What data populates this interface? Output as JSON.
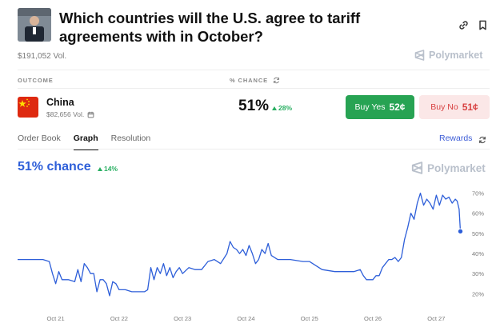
{
  "market": {
    "title": "Which countries will the U.S. agree to tariff agreements with in October?",
    "volume": "$191,052 Vol.",
    "brand": "Polymarket"
  },
  "columns": {
    "outcome": "OUTCOME",
    "chance": "% CHANCE"
  },
  "outcome": {
    "name": "China",
    "volume": "$82,656 Vol.",
    "chance": "51%",
    "change": "28%",
    "buy_yes_label": "Buy Yes",
    "buy_yes_price": "52¢",
    "buy_no_label": "Buy No",
    "buy_no_price": "51¢"
  },
  "tabs": [
    {
      "label": "Order Book",
      "active": false
    },
    {
      "label": "Graph",
      "active": true
    },
    {
      "label": "Resolution",
      "active": false
    }
  ],
  "rewards_label": "Rewards",
  "chart_header": {
    "chance": "51% chance",
    "change": "14%"
  },
  "icons": {
    "link": "link-icon",
    "bookmark": "bookmark-icon",
    "refresh": "refresh-icon",
    "calendar": "calendar-icon",
    "flag": "china-flag-icon",
    "brand": "polymarket-logo-icon"
  },
  "colors": {
    "line": "#2e5fd9",
    "yes": "#27a353",
    "no_bg": "#fbe7e7",
    "no_text": "#d84242",
    "up": "#27ae60"
  },
  "chart_data": {
    "type": "line",
    "x_ticks": [
      "Oct 21",
      "Oct 22",
      "Oct 23",
      "Oct 24",
      "Oct 25",
      "Oct 26",
      "Oct 27"
    ],
    "y_ticks": [
      "20%",
      "30%",
      "40%",
      "50%",
      "60%",
      "70%"
    ],
    "ylim": [
      15,
      73
    ],
    "xlim": [
      20.4,
      27.5
    ],
    "grid": false,
    "series": [
      {
        "x": [
          20.4,
          20.6,
          20.8,
          20.9,
          20.95,
          21.0,
          21.05,
          21.1,
          21.2,
          21.3,
          21.35,
          21.4,
          21.45,
          21.5,
          21.55,
          21.6,
          21.65,
          21.7,
          21.75,
          21.8,
          21.85,
          21.9,
          21.95,
          22.0,
          22.1,
          22.2,
          22.3,
          22.4,
          22.45,
          22.5,
          22.55,
          22.6,
          22.65,
          22.7,
          22.75,
          22.8,
          22.85,
          22.9,
          22.95,
          23.0,
          23.1,
          23.2,
          23.3,
          23.4,
          23.5,
          23.6,
          23.7,
          23.75,
          23.8,
          23.85,
          23.9,
          23.95,
          24.0,
          24.05,
          24.1,
          24.15,
          24.2,
          24.25,
          24.3,
          24.35,
          24.4,
          24.5,
          24.7,
          24.9,
          25.0,
          25.2,
          25.4,
          25.5,
          25.6,
          25.7,
          25.8,
          25.85,
          25.9,
          26.0,
          26.05,
          26.1,
          26.15,
          26.2,
          26.25,
          26.3,
          26.35,
          26.4,
          26.45,
          26.5,
          26.55,
          26.6,
          26.65,
          26.7,
          26.75,
          26.8,
          26.85,
          26.9,
          26.95,
          27.0,
          27.05,
          27.1,
          27.15,
          27.2,
          27.25,
          27.3,
          27.33,
          27.36,
          27.38
        ],
        "y": [
          37,
          37,
          37,
          36,
          30,
          25,
          31,
          27,
          27,
          26,
          32,
          26,
          35,
          33,
          30,
          30,
          21,
          27,
          27,
          25,
          19,
          26,
          25,
          22,
          22,
          21,
          21,
          21,
          22,
          33,
          27,
          33,
          30,
          35,
          29,
          33,
          28,
          31,
          33,
          30,
          33,
          32,
          32,
          36,
          37,
          35,
          40,
          46,
          43,
          42,
          40,
          42,
          39,
          44,
          40,
          35,
          37,
          42,
          40,
          45,
          39,
          37,
          37,
          36,
          36,
          32,
          31,
          31,
          31,
          31,
          32,
          29,
          27,
          27,
          29,
          29,
          33,
          35,
          37,
          37,
          38,
          36,
          38,
          47,
          53,
          60,
          57,
          65,
          70,
          64,
          67,
          65,
          62,
          69,
          64,
          69,
          67,
          68,
          65,
          67,
          66,
          62,
          51
        ]
      }
    ]
  }
}
